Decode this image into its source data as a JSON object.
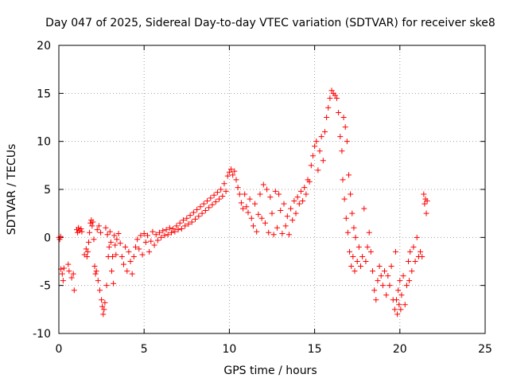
{
  "chart_data": {
    "type": "scatter",
    "title": "Day 047 of 2025, Sidereal Day-to-day VTEC variation (SDTVAR) for receiver ske8",
    "xlabel": "GPS time / hours",
    "ylabel": "SDTVAR / TECUs",
    "xlim": [
      0,
      25
    ],
    "ylim": [
      -10,
      20
    ],
    "xticks": [
      0,
      5,
      10,
      15,
      20,
      25
    ],
    "yticks": [
      -10,
      -5,
      0,
      5,
      10,
      15,
      20
    ],
    "grid": true,
    "marker": "plus",
    "color": "#ff0000",
    "series": [
      {
        "name": "ske8",
        "points": [
          [
            0.0,
            0.0
          ],
          [
            0.05,
            -0.2
          ],
          [
            0.1,
            0.1
          ],
          [
            0.12,
            -3.3
          ],
          [
            0.2,
            -3.8
          ],
          [
            0.25,
            -4.5
          ],
          [
            0.3,
            -3.2
          ],
          [
            0.55,
            -2.8
          ],
          [
            0.6,
            -3.5
          ],
          [
            0.75,
            -4.2
          ],
          [
            0.85,
            -3.8
          ],
          [
            0.9,
            -5.5
          ],
          [
            1.05,
            0.8
          ],
          [
            1.1,
            0.5
          ],
          [
            1.15,
            1.0
          ],
          [
            1.2,
            0.7
          ],
          [
            1.3,
            0.9
          ],
          [
            1.35,
            0.6
          ],
          [
            1.5,
            -1.8
          ],
          [
            1.6,
            -1.2
          ],
          [
            1.65,
            -2.0
          ],
          [
            1.7,
            -1.5
          ],
          [
            1.75,
            -0.5
          ],
          [
            1.8,
            0.5
          ],
          [
            1.85,
            1.5
          ],
          [
            1.9,
            1.8
          ],
          [
            1.95,
            1.2
          ],
          [
            2.0,
            1.6
          ],
          [
            2.05,
            -0.2
          ],
          [
            2.1,
            -3.0
          ],
          [
            2.15,
            -3.8
          ],
          [
            2.2,
            -3.5
          ],
          [
            2.25,
            0.8
          ],
          [
            2.3,
            -4.5
          ],
          [
            2.35,
            1.2
          ],
          [
            2.4,
            -5.5
          ],
          [
            2.45,
            0.5
          ],
          [
            2.5,
            -6.5
          ],
          [
            2.55,
            -7.2
          ],
          [
            2.6,
            -8.0
          ],
          [
            2.65,
            -7.5
          ],
          [
            2.7,
            -6.8
          ],
          [
            2.75,
            1.0
          ],
          [
            2.8,
            -5.0
          ],
          [
            2.85,
            0.3
          ],
          [
            2.9,
            -2.0
          ],
          [
            2.95,
            -1.0
          ],
          [
            3.0,
            0.6
          ],
          [
            3.05,
            -0.5
          ],
          [
            3.1,
            -3.5
          ],
          [
            3.15,
            -2.0
          ],
          [
            3.2,
            -4.8
          ],
          [
            3.25,
            0.2
          ],
          [
            3.3,
            -0.8
          ],
          [
            3.35,
            -1.8
          ],
          [
            3.4,
            -0.2
          ],
          [
            3.5,
            0.4
          ],
          [
            3.6,
            -0.6
          ],
          [
            3.7,
            -2.0
          ],
          [
            3.8,
            -2.8
          ],
          [
            3.9,
            -1.0
          ],
          [
            4.0,
            -3.5
          ],
          [
            4.1,
            -1.5
          ],
          [
            4.2,
            -2.5
          ],
          [
            4.3,
            -3.8
          ],
          [
            4.4,
            -2.0
          ],
          [
            4.5,
            -1.0
          ],
          [
            4.6,
            -0.2
          ],
          [
            4.7,
            -1.2
          ],
          [
            4.8,
            0.2
          ],
          [
            4.9,
            -1.8
          ],
          [
            5.0,
            0.4
          ],
          [
            5.1,
            -0.5
          ],
          [
            5.2,
            0.2
          ],
          [
            5.3,
            -1.5
          ],
          [
            5.4,
            -0.4
          ],
          [
            5.5,
            0.6
          ],
          [
            5.6,
            -0.8
          ],
          [
            5.7,
            0.3
          ],
          [
            5.8,
            -0.3
          ],
          [
            5.9,
            0.5
          ],
          [
            6.0,
            0.0
          ],
          [
            6.1,
            0.7
          ],
          [
            6.2,
            0.2
          ],
          [
            6.3,
            0.8
          ],
          [
            6.4,
            0.3
          ],
          [
            6.5,
            1.0
          ],
          [
            6.6,
            0.5
          ],
          [
            6.7,
            0.9
          ],
          [
            6.8,
            0.6
          ],
          [
            6.9,
            1.2
          ],
          [
            7.0,
            0.8
          ],
          [
            7.1,
            1.5
          ],
          [
            7.2,
            0.9
          ],
          [
            7.3,
            1.8
          ],
          [
            7.4,
            1.2
          ],
          [
            7.5,
            2.0
          ],
          [
            7.6,
            1.4
          ],
          [
            7.7,
            2.3
          ],
          [
            7.8,
            1.6
          ],
          [
            7.9,
            2.6
          ],
          [
            8.0,
            1.9
          ],
          [
            8.1,
            2.9
          ],
          [
            8.2,
            2.2
          ],
          [
            8.3,
            3.2
          ],
          [
            8.4,
            2.5
          ],
          [
            8.5,
            3.5
          ],
          [
            8.6,
            2.8
          ],
          [
            8.7,
            3.8
          ],
          [
            8.8,
            3.1
          ],
          [
            8.9,
            4.1
          ],
          [
            9.0,
            3.4
          ],
          [
            9.1,
            4.4
          ],
          [
            9.2,
            3.7
          ],
          [
            9.3,
            4.7
          ],
          [
            9.4,
            4.0
          ],
          [
            9.5,
            5.0
          ],
          [
            9.6,
            4.3
          ],
          [
            9.7,
            5.6
          ],
          [
            9.8,
            4.8
          ],
          [
            9.9,
            6.4
          ],
          [
            10.0,
            6.8
          ],
          [
            10.1,
            7.1
          ],
          [
            10.2,
            6.5
          ],
          [
            10.3,
            6.9
          ],
          [
            10.4,
            6.0
          ],
          [
            10.5,
            5.2
          ],
          [
            10.6,
            4.5
          ],
          [
            10.7,
            3.6
          ],
          [
            10.8,
            3.0
          ],
          [
            10.9,
            4.5
          ],
          [
            11.0,
            3.2
          ],
          [
            11.1,
            2.6
          ],
          [
            11.2,
            4.0
          ],
          [
            11.3,
            2.0
          ],
          [
            11.4,
            1.2
          ],
          [
            11.5,
            3.5
          ],
          [
            11.6,
            0.6
          ],
          [
            11.7,
            2.4
          ],
          [
            11.8,
            4.5
          ],
          [
            11.9,
            2.0
          ],
          [
            12.0,
            5.5
          ],
          [
            12.1,
            1.5
          ],
          [
            12.2,
            5.0
          ],
          [
            12.3,
            0.5
          ],
          [
            12.4,
            4.2
          ],
          [
            12.5,
            2.5
          ],
          [
            12.6,
            0.3
          ],
          [
            12.7,
            4.8
          ],
          [
            12.8,
            1.0
          ],
          [
            12.9,
            4.5
          ],
          [
            13.0,
            2.8
          ],
          [
            13.1,
            0.4
          ],
          [
            13.2,
            3.5
          ],
          [
            13.3,
            1.2
          ],
          [
            13.4,
            2.2
          ],
          [
            13.5,
            0.3
          ],
          [
            13.6,
            3.0
          ],
          [
            13.7,
            1.8
          ],
          [
            13.8,
            3.8
          ],
          [
            13.9,
            2.5
          ],
          [
            14.0,
            4.2
          ],
          [
            14.1,
            3.5
          ],
          [
            14.2,
            4.8
          ],
          [
            14.3,
            3.8
          ],
          [
            14.4,
            5.2
          ],
          [
            14.5,
            4.5
          ],
          [
            14.6,
            6.0
          ],
          [
            14.7,
            5.8
          ],
          [
            14.8,
            7.5
          ],
          [
            14.9,
            8.5
          ],
          [
            15.0,
            9.5
          ],
          [
            15.1,
            10.0
          ],
          [
            15.2,
            7.0
          ],
          [
            15.3,
            9.0
          ],
          [
            15.4,
            10.5
          ],
          [
            15.5,
            8.0
          ],
          [
            15.6,
            11.0
          ],
          [
            15.7,
            12.5
          ],
          [
            15.8,
            13.5
          ],
          [
            15.9,
            14.5
          ],
          [
            16.0,
            15.3
          ],
          [
            16.1,
            15.0
          ],
          [
            16.2,
            14.8
          ],
          [
            16.3,
            14.5
          ],
          [
            16.4,
            13.0
          ],
          [
            16.5,
            10.5
          ],
          [
            16.6,
            9.0
          ],
          [
            16.65,
            6.0
          ],
          [
            16.7,
            12.5
          ],
          [
            16.75,
            4.0
          ],
          [
            16.8,
            11.5
          ],
          [
            16.85,
            2.0
          ],
          [
            16.9,
            10.0
          ],
          [
            16.95,
            0.5
          ],
          [
            17.0,
            6.5
          ],
          [
            17.05,
            -1.5
          ],
          [
            17.1,
            4.5
          ],
          [
            17.15,
            -3.0
          ],
          [
            17.2,
            2.5
          ],
          [
            17.25,
            -2.0
          ],
          [
            17.3,
            1.0
          ],
          [
            17.35,
            -3.5
          ],
          [
            17.4,
            0.0
          ],
          [
            17.5,
            -2.5
          ],
          [
            17.6,
            -1.0
          ],
          [
            17.7,
            -3.0
          ],
          [
            17.8,
            -2.0
          ],
          [
            17.9,
            3.0
          ],
          [
            18.0,
            -2.5
          ],
          [
            18.1,
            -1.0
          ],
          [
            18.2,
            0.5
          ],
          [
            18.3,
            -1.5
          ],
          [
            18.4,
            -3.5
          ],
          [
            18.5,
            -5.5
          ],
          [
            18.6,
            -6.5
          ],
          [
            18.7,
            -4.5
          ],
          [
            18.8,
            -3.0
          ],
          [
            18.9,
            -4.0
          ],
          [
            19.0,
            -5.0
          ],
          [
            19.1,
            -3.5
          ],
          [
            19.2,
            -6.0
          ],
          [
            19.3,
            -4.0
          ],
          [
            19.4,
            -5.0
          ],
          [
            19.5,
            -3.0
          ],
          [
            19.6,
            -6.5
          ],
          [
            19.7,
            -7.5
          ],
          [
            19.75,
            -1.5
          ],
          [
            19.8,
            -6.5
          ],
          [
            19.85,
            -8.0
          ],
          [
            19.9,
            -5.5
          ],
          [
            19.95,
            -7.0
          ],
          [
            20.0,
            -4.5
          ],
          [
            20.05,
            -7.5
          ],
          [
            20.1,
            -6.0
          ],
          [
            20.2,
            -4.0
          ],
          [
            20.3,
            -7.0
          ],
          [
            20.4,
            -5.0
          ],
          [
            20.5,
            -2.5
          ],
          [
            20.55,
            -4.5
          ],
          [
            20.6,
            -1.5
          ],
          [
            20.7,
            -3.5
          ],
          [
            20.8,
            -1.0
          ],
          [
            20.9,
            -2.5
          ],
          [
            21.0,
            0.0
          ],
          [
            21.1,
            -2.0
          ],
          [
            21.2,
            -1.5
          ],
          [
            21.3,
            -2.0
          ],
          [
            21.4,
            4.5
          ],
          [
            21.45,
            3.5
          ],
          [
            21.5,
            4.0
          ],
          [
            21.55,
            2.5
          ],
          [
            21.6,
            3.8
          ]
        ]
      }
    ]
  }
}
